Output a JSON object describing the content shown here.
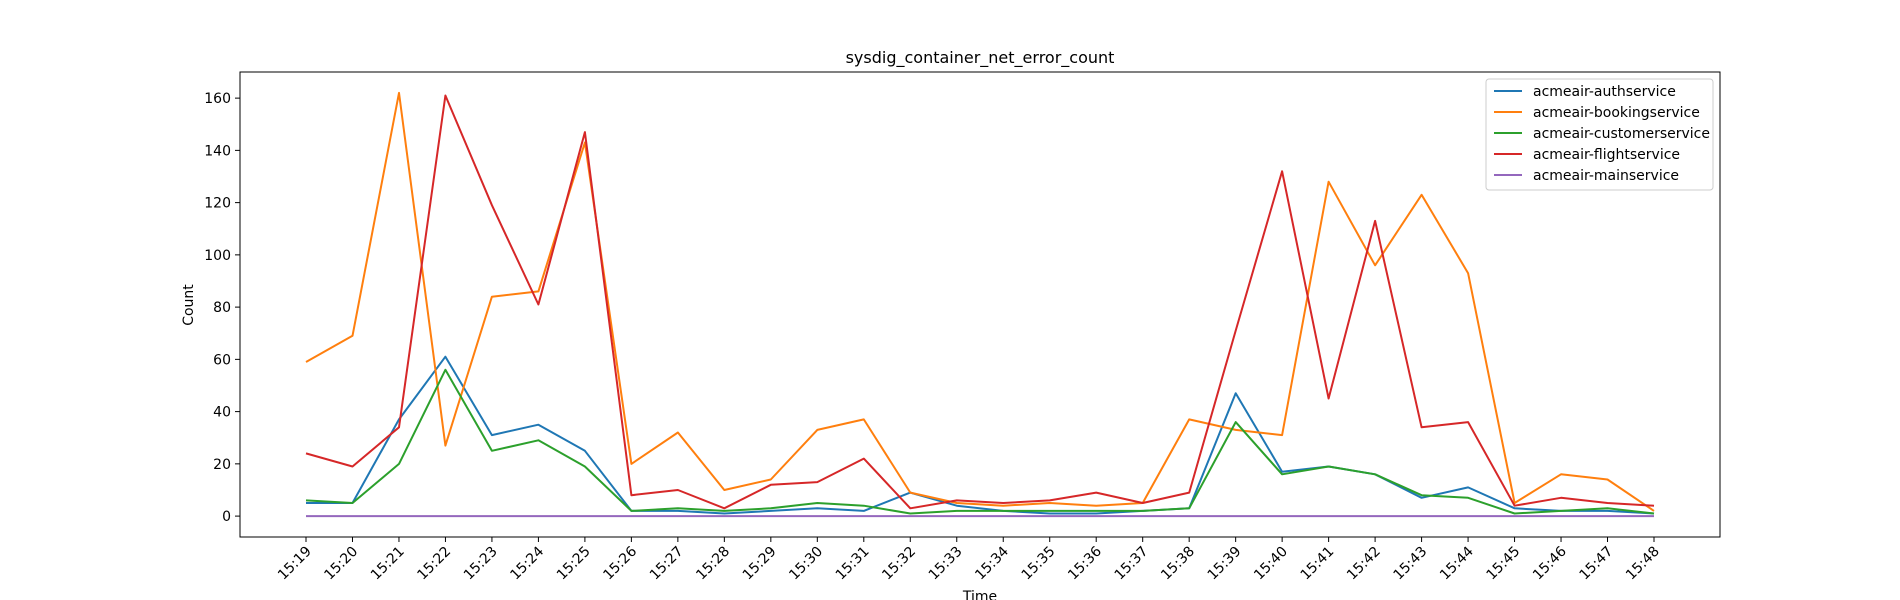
{
  "chart_data": {
    "type": "line",
    "title": "sysdig_container_net_error_count",
    "xlabel": "Time",
    "ylabel": "Count",
    "ylim": [
      -8,
      170
    ],
    "y_ticks": [
      0,
      20,
      40,
      60,
      80,
      100,
      120,
      140,
      160
    ],
    "grid": false,
    "legend_position": "top-right",
    "x": [
      "15:19",
      "15:20",
      "15:21",
      "15:22",
      "15:23",
      "15:24",
      "15:25",
      "15:26",
      "15:27",
      "15:28",
      "15:29",
      "15:30",
      "15:31",
      "15:32",
      "15:33",
      "15:34",
      "15:35",
      "15:36",
      "15:37",
      "15:38",
      "15:39",
      "15:40",
      "15:41",
      "15:42",
      "15:43",
      "15:44",
      "15:45",
      "15:46",
      "15:47",
      "15:48"
    ],
    "series": [
      {
        "name": "acmeair-authservice",
        "color": "#1f77b4",
        "values": [
          5,
          5,
          37,
          61,
          31,
          35,
          25,
          2,
          2,
          1,
          2,
          3,
          2,
          9,
          4,
          2,
          1,
          1,
          2,
          3,
          47,
          17,
          19,
          16,
          7,
          11,
          3,
          2,
          2,
          1
        ]
      },
      {
        "name": "acmeair-bookingservice",
        "color": "#ff7f0e",
        "values": [
          59,
          69,
          162,
          27,
          84,
          86,
          143,
          20,
          32,
          10,
          14,
          33,
          37,
          9,
          5,
          4,
          5,
          4,
          5,
          37,
          33,
          31,
          128,
          96,
          123,
          93,
          5,
          16,
          14,
          2
        ]
      },
      {
        "name": "acmeair-customerservice",
        "color": "#2ca02c",
        "values": [
          6,
          5,
          20,
          56,
          25,
          29,
          19,
          2,
          3,
          2,
          3,
          5,
          4,
          1,
          2,
          2,
          2,
          2,
          2,
          3,
          36,
          16,
          19,
          16,
          8,
          7,
          1,
          2,
          3,
          1
        ]
      },
      {
        "name": "acmeair-flightservice",
        "color": "#d62728",
        "values": [
          24,
          19,
          34,
          161,
          119,
          81,
          147,
          8,
          10,
          3,
          12,
          13,
          22,
          3,
          6,
          5,
          6,
          9,
          5,
          9,
          71,
          132,
          45,
          113,
          34,
          36,
          4,
          7,
          5,
          4
        ]
      },
      {
        "name": "acmeair-mainservice",
        "color": "#9467bd",
        "values": [
          0,
          0,
          0,
          0,
          0,
          0,
          0,
          0,
          0,
          0,
          0,
          0,
          0,
          0,
          0,
          0,
          0,
          0,
          0,
          0,
          0,
          0,
          0,
          0,
          0,
          0,
          0,
          0,
          0,
          0
        ]
      }
    ]
  }
}
